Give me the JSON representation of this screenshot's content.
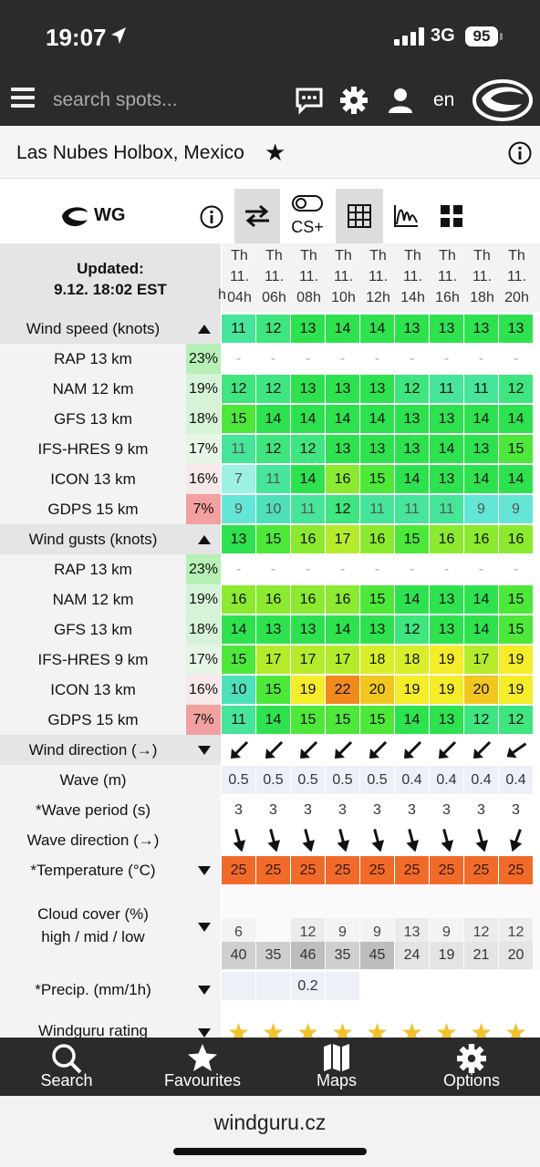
{
  "status": {
    "time": "19:07",
    "network": "3G",
    "battery": "95"
  },
  "nav": {
    "search_placeholder": "search spots...",
    "language": "en"
  },
  "spot": {
    "name": "Las Nubes Holbox, Mexico"
  },
  "toolbar": {
    "model": "WG",
    "cs_label": "CS+"
  },
  "updated": {
    "label": "Updated:",
    "value": "9.12. 18:02 EST"
  },
  "columns": [
    {
      "day": "Th",
      "date": "11.",
      "hour": "04h"
    },
    {
      "day": "Th",
      "date": "11.",
      "hour": "06h"
    },
    {
      "day": "Th",
      "date": "11.",
      "hour": "08h"
    },
    {
      "day": "Th",
      "date": "11.",
      "hour": "10h"
    },
    {
      "day": "Th",
      "date": "11.",
      "hour": "12h"
    },
    {
      "day": "Th",
      "date": "11.",
      "hour": "14h"
    },
    {
      "day": "Th",
      "date": "11.",
      "hour": "16h"
    },
    {
      "day": "Th",
      "date": "11.",
      "hour": "18h"
    },
    {
      "day": "Th",
      "date": "11.",
      "hour": "20h"
    }
  ],
  "wind_speed": {
    "label": "Wind speed (knots)",
    "values": [
      "11",
      "12",
      "13",
      "14",
      "14",
      "13",
      "13",
      "13",
      "13"
    ],
    "models": [
      {
        "name": "RAP 13 km",
        "pct": "23%",
        "values": [
          "-",
          "-",
          "-",
          "-",
          "-",
          "-",
          "-",
          "-",
          "-"
        ]
      },
      {
        "name": "NAM 12 km",
        "pct": "19%",
        "values": [
          "12",
          "12",
          "13",
          "13",
          "13",
          "12",
          "11",
          "11",
          "12"
        ]
      },
      {
        "name": "GFS 13 km",
        "pct": "18%",
        "values": [
          "15",
          "14",
          "14",
          "14",
          "14",
          "13",
          "13",
          "14",
          "14"
        ]
      },
      {
        "name": "IFS-HRES 9 km",
        "pct": "17%",
        "values": [
          "11",
          "12",
          "12",
          "13",
          "13",
          "13",
          "14",
          "13",
          "15"
        ]
      },
      {
        "name": "ICON 13 km",
        "pct": "16%",
        "values": [
          "7",
          "11",
          "14",
          "16",
          "15",
          "14",
          "13",
          "14",
          "14"
        ]
      },
      {
        "name": "GDPS 15 km",
        "pct": "7%",
        "values": [
          "9",
          "10",
          "11",
          "12",
          "11",
          "11",
          "11",
          "9",
          "9"
        ]
      }
    ]
  },
  "wind_gusts": {
    "label": "Wind gusts (knots)",
    "values": [
      "13",
      "15",
      "16",
      "17",
      "16",
      "15",
      "16",
      "16",
      "16"
    ],
    "models": [
      {
        "name": "RAP 13 km",
        "pct": "23%",
        "values": [
          "-",
          "-",
          "-",
          "-",
          "-",
          "-",
          "-",
          "-",
          "-"
        ]
      },
      {
        "name": "NAM 12 km",
        "pct": "19%",
        "values": [
          "16",
          "16",
          "16",
          "16",
          "15",
          "14",
          "13",
          "14",
          "15"
        ]
      },
      {
        "name": "GFS 13 km",
        "pct": "18%",
        "values": [
          "14",
          "13",
          "13",
          "14",
          "13",
          "12",
          "13",
          "14",
          "15"
        ]
      },
      {
        "name": "IFS-HRES 9 km",
        "pct": "17%",
        "values": [
          "15",
          "17",
          "17",
          "17",
          "18",
          "18",
          "19",
          "17",
          "19"
        ]
      },
      {
        "name": "ICON 13 km",
        "pct": "16%",
        "values": [
          "10",
          "15",
          "19",
          "22",
          "20",
          "19",
          "19",
          "20",
          "19"
        ]
      },
      {
        "name": "GDPS 15 km",
        "pct": "7%",
        "values": [
          "11",
          "14",
          "15",
          "15",
          "15",
          "14",
          "13",
          "12",
          "12"
        ]
      }
    ]
  },
  "wind_direction": {
    "label": "Wind direction (→)",
    "icon": "arrow-down-left"
  },
  "wave": {
    "label": "Wave (m)",
    "values": [
      "0.5",
      "0.5",
      "0.5",
      "0.5",
      "0.5",
      "0.4",
      "0.4",
      "0.4",
      "0.4"
    ]
  },
  "wave_period": {
    "label": "*Wave period (s)",
    "values": [
      "3",
      "3",
      "3",
      "3",
      "3",
      "3",
      "3",
      "3",
      "3"
    ]
  },
  "wave_direction": {
    "label": "Wave direction (→)"
  },
  "temperature": {
    "label": "*Temperature (°C)",
    "values": [
      "25",
      "25",
      "25",
      "25",
      "25",
      "25",
      "25",
      "25",
      "25"
    ]
  },
  "cloud": {
    "label": "Cloud cover (%)",
    "sub": "high / mid / low",
    "high": [
      "6",
      "",
      "12",
      "9",
      "9",
      "13",
      "9",
      "12",
      "12"
    ],
    "low": [
      "40",
      "35",
      "46",
      "35",
      "45",
      "24",
      "19",
      "21",
      "20"
    ]
  },
  "precip": {
    "label": "*Precip. (mm/1h)",
    "values": [
      "",
      "",
      "0.2",
      "",
      "",
      "",
      "",
      "",
      ""
    ]
  },
  "rating": {
    "label": "Windguru rating",
    "stars": [
      1,
      1,
      1,
      1,
      1,
      1,
      1,
      1,
      1
    ]
  },
  "bottom_nav": [
    {
      "label": "Search",
      "icon": "search-icon"
    },
    {
      "label": "Favourites",
      "icon": "star-icon"
    },
    {
      "label": "Maps",
      "icon": "map-icon"
    },
    {
      "label": "Options",
      "icon": "gear-icon"
    }
  ],
  "url": "windguru.cz",
  "colors": {
    "dark": "#2b2b2b",
    "temp": "#f06a2a"
  }
}
